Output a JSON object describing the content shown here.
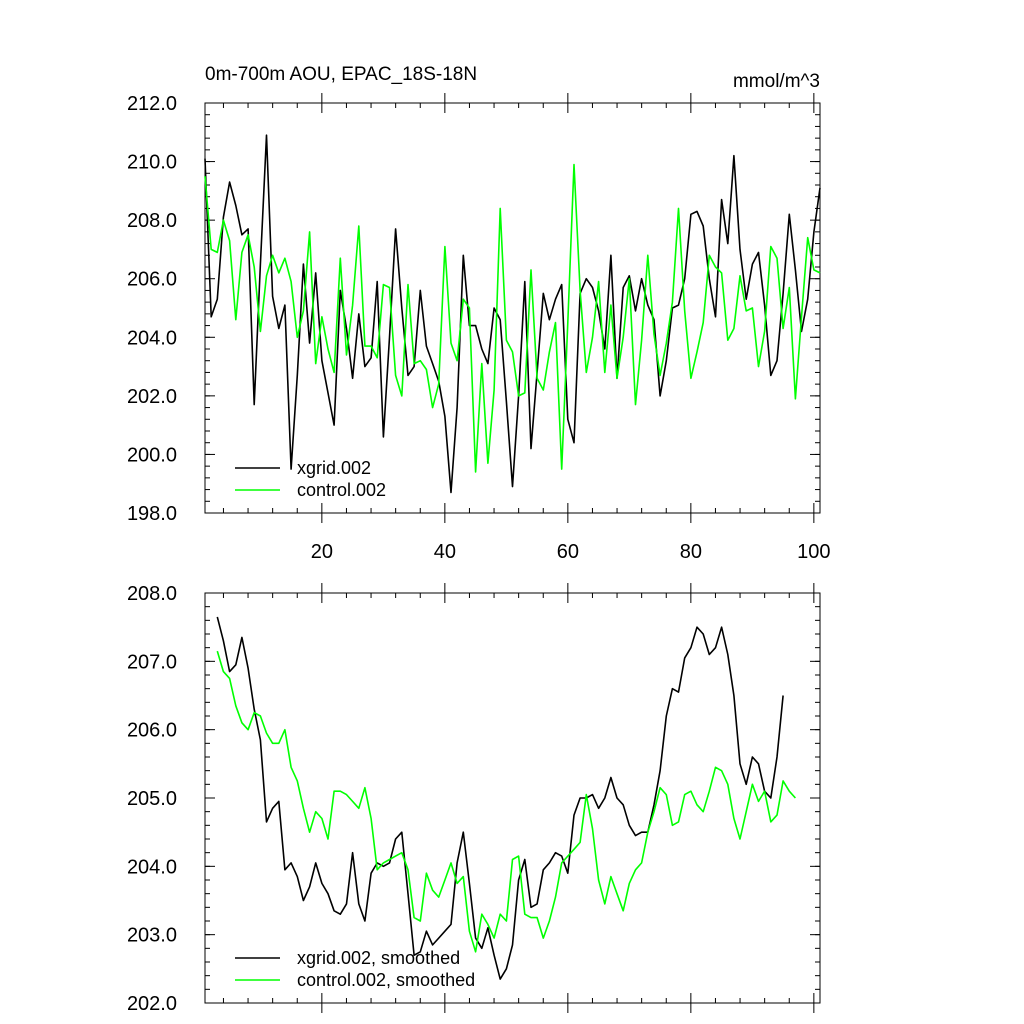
{
  "chart_data": [
    {
      "type": "line",
      "title": "0m-700m AOU, EPAC_18S-18N",
      "units": "mmol/m^3",
      "xlabel": "",
      "ylabel": "",
      "xlim": [
        1,
        101
      ],
      "ylim": [
        198,
        212
      ],
      "xticks": [
        "20",
        "40",
        "60",
        "80",
        "100"
      ],
      "yticks": [
        "198.0",
        "200.0",
        "202.0",
        "204.0",
        "206.0",
        "208.0",
        "210.0",
        "212.0"
      ],
      "legend_position": "bottom-left",
      "grid": false,
      "series": [
        {
          "name": "xgrid.002",
          "color": "#000000",
          "x0": 1,
          "values": [
            210.1,
            204.7,
            205.3,
            208.1,
            209.3,
            208.5,
            207.5,
            207.7,
            201.7,
            206.5,
            210.9,
            205.4,
            204.3,
            205.1,
            199.5,
            202.7,
            206.5,
            203.8,
            206.2,
            203.2,
            202.1,
            201.0,
            205.6,
            204.3,
            202.6,
            204.8,
            203.0,
            203.3,
            205.9,
            200.6,
            204.0,
            207.7,
            205.0,
            202.7,
            203.0,
            205.6,
            203.7,
            203.1,
            202.5,
            201.3,
            198.7,
            201.6,
            206.8,
            204.4,
            204.4,
            203.6,
            203.1,
            205.0,
            204.6,
            201.8,
            198.9,
            202.0,
            205.9,
            200.2,
            202.8,
            205.5,
            204.6,
            205.3,
            205.8,
            201.2,
            200.4,
            205.5,
            206.0,
            205.7,
            204.9,
            203.6,
            206.8,
            202.6,
            205.7,
            206.1,
            204.9,
            206.0,
            205.1,
            204.6,
            202.0,
            203.2,
            205.0,
            205.1,
            206.0,
            208.2,
            208.3,
            207.8,
            206.0,
            204.7,
            208.7,
            207.2,
            210.2,
            207.0,
            205.3,
            206.5,
            206.9,
            205.1,
            202.7,
            203.2,
            205.5,
            208.2,
            206.3,
            204.2,
            205.3,
            207.6,
            209.1
          ]
        },
        {
          "name": "control.002",
          "color": "#00ff00",
          "x0": 1,
          "values": [
            209.5,
            207.0,
            206.9,
            208.0,
            207.3,
            204.6,
            206.9,
            207.5,
            206.4,
            204.2,
            206.1,
            206.8,
            206.2,
            206.7,
            205.9,
            204.0,
            204.9,
            207.6,
            203.1,
            204.7,
            203.6,
            202.8,
            206.7,
            203.4,
            205.1,
            207.8,
            203.7,
            203.7,
            203.3,
            205.8,
            205.7,
            202.7,
            202.0,
            205.8,
            203.1,
            203.2,
            202.9,
            201.6,
            202.4,
            207.1,
            203.8,
            203.2,
            205.3,
            205.0,
            199.4,
            203.1,
            199.7,
            202.2,
            208.4,
            203.9,
            203.5,
            202.0,
            202.1,
            206.3,
            202.6,
            202.2,
            203.5,
            204.5,
            199.5,
            204.5,
            209.9,
            205.6,
            202.8,
            204.0,
            205.9,
            202.8,
            205.1,
            202.6,
            204.0,
            206.0,
            201.7,
            203.9,
            206.8,
            204.1,
            202.7,
            203.8,
            205.2,
            208.4,
            204.9,
            202.6,
            203.5,
            204.5,
            206.8,
            206.4,
            206.2,
            203.9,
            204.3,
            206.1,
            204.9,
            205.0,
            203.0,
            204.2,
            207.1,
            206.7,
            204.3,
            205.7,
            201.9,
            204.7,
            207.4,
            206.3,
            206.2
          ]
        }
      ]
    },
    {
      "type": "line",
      "title": "",
      "xlabel": "",
      "ylabel": "",
      "xlim": [
        1,
        101
      ],
      "ylim": [
        202,
        208
      ],
      "yticks": [
        "202.0",
        "203.0",
        "204.0",
        "205.0",
        "206.0",
        "207.0",
        "208.0"
      ],
      "legend_position": "bottom-left",
      "grid": false,
      "series": [
        {
          "name": "xgrid.002, smoothed",
          "color": "#000000",
          "x0": 3,
          "values": [
            207.65,
            207.3,
            206.85,
            206.95,
            207.35,
            206.9,
            206.3,
            205.85,
            204.65,
            204.85,
            204.95,
            203.95,
            204.05,
            203.85,
            203.5,
            203.7,
            204.05,
            203.75,
            203.6,
            203.35,
            203.3,
            203.45,
            204.2,
            203.45,
            203.2,
            203.9,
            204.05,
            204.0,
            204.05,
            204.4,
            204.5,
            203.6,
            202.7,
            202.75,
            203.05,
            202.85,
            202.95,
            203.05,
            203.15,
            204.05,
            204.5,
            203.75,
            202.95,
            202.8,
            203.1,
            202.7,
            202.35,
            202.5,
            202.85,
            203.8,
            204.1,
            203.4,
            203.45,
            203.95,
            204.05,
            204.2,
            204.15,
            203.9,
            204.75,
            205.0,
            205.0,
            205.05,
            204.85,
            205.0,
            205.3,
            205.0,
            204.9,
            204.6,
            204.45,
            204.5,
            204.5,
            204.9,
            205.4,
            206.2,
            206.6,
            206.55,
            207.05,
            207.2,
            207.5,
            207.4,
            207.1,
            207.2,
            207.5,
            207.1,
            206.5,
            205.5,
            205.2,
            205.6,
            205.5,
            205.1,
            205.0,
            205.6,
            206.5
          ]
        },
        {
          "name": "control.002, smoothed",
          "color": "#00ff00",
          "x0": 3,
          "values": [
            207.15,
            206.85,
            206.75,
            206.35,
            206.1,
            206.0,
            206.25,
            206.2,
            205.95,
            205.8,
            205.8,
            206.0,
            205.45,
            205.25,
            204.85,
            204.5,
            204.8,
            204.7,
            204.4,
            205.1,
            205.1,
            205.05,
            204.95,
            204.85,
            205.15,
            204.7,
            203.95,
            204.05,
            204.1,
            204.15,
            204.2,
            203.95,
            203.25,
            203.2,
            203.9,
            203.65,
            203.55,
            203.8,
            204.05,
            203.75,
            203.85,
            203.05,
            202.75,
            203.3,
            203.15,
            202.95,
            203.3,
            203.2,
            204.1,
            204.15,
            203.3,
            203.25,
            203.25,
            202.95,
            203.2,
            203.55,
            204.05,
            204.15,
            204.25,
            204.35,
            205.05,
            204.55,
            203.8,
            203.45,
            203.85,
            203.6,
            203.35,
            203.75,
            203.95,
            204.05,
            204.5,
            204.8,
            205.15,
            205.05,
            204.6,
            204.65,
            205.05,
            205.1,
            204.9,
            204.8,
            205.1,
            205.45,
            205.4,
            205.2,
            204.7,
            204.4,
            204.8,
            205.2,
            204.95,
            205.1,
            204.65,
            204.75,
            205.25,
            205.1,
            205.0
          ]
        }
      ]
    }
  ]
}
